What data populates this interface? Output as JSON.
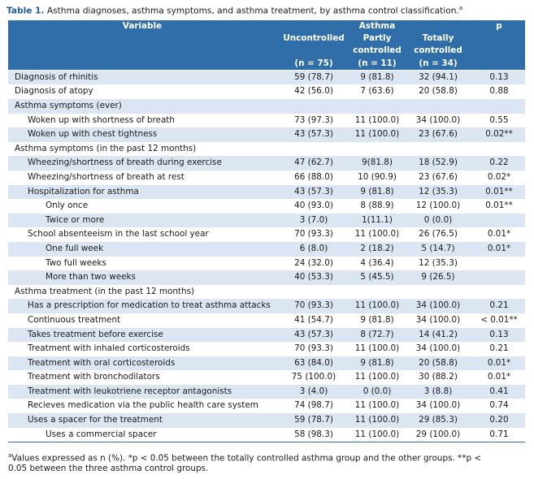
{
  "caption": {
    "label": "Table 1.",
    "text": "Asthma diagnoses, asthma symptoms, and asthma treatment, by asthma control classification.",
    "marker": "a"
  },
  "header": {
    "variable": "Variable",
    "asthma": "Asthma",
    "uncontrolled": "Uncontrolled",
    "partly1": "Partly",
    "partly2": "controlled",
    "totally1": "Totally",
    "totally2": "controlled",
    "p": "p",
    "n_uncontrolled": "(n = 75)",
    "n_partly": "(n = 11)",
    "n_totally": "(n = 34)"
  },
  "rows": [
    {
      "label": "Diagnosis of rhinitis",
      "indent": 0,
      "u": "59 (78.7)",
      "pc": "9 (81.8)",
      "tc": "32 (94.1)",
      "p": "0.13"
    },
    {
      "label": "Diagnosis of atopy",
      "indent": 0,
      "u": "42 (56.0)",
      "pc": "7 (63.6)",
      "tc": "20 (58.8)",
      "p": "0.88"
    },
    {
      "label": "Asthma symptoms (ever)",
      "indent": 0,
      "u": "",
      "pc": "",
      "tc": "",
      "p": ""
    },
    {
      "label": "Woken up with shortness of breath",
      "indent": 1,
      "u": "73 (97.3)",
      "pc": "11 (100.0)",
      "tc": "34 (100.0)",
      "p": "0.55"
    },
    {
      "label": "Woken up with chest tightness",
      "indent": 1,
      "u": "43 (57.3)",
      "pc": "11 (100.0)",
      "tc": "23 (67.6)",
      "p": "0.02**"
    },
    {
      "label": "Asthma symptoms (in the past 12 months)",
      "indent": 0,
      "u": "",
      "pc": "",
      "tc": "",
      "p": ""
    },
    {
      "label": "Wheezing/shortness of breath during exercise",
      "indent": 1,
      "u": "47 (62.7)",
      "pc": "9(81.8)",
      "tc": "18 (52.9)",
      "p": "0.22"
    },
    {
      "label": "Wheezing/shortness of breath at rest",
      "indent": 1,
      "u": "66 (88.0)",
      "pc": "10 (90.9)",
      "tc": "23 (67.6)",
      "p": "0.02*"
    },
    {
      "label": "Hospitalization for asthma",
      "indent": 1,
      "u": "43 (57.3)",
      "pc": "9 (81.8)",
      "tc": "12 (35.3)",
      "p": "0.01**"
    },
    {
      "label": "Only once",
      "indent": 2,
      "u": "40 (93.0)",
      "pc": "8 (88.9)",
      "tc": "12 (100.0)",
      "p": "0.01**"
    },
    {
      "label": "Twice or more",
      "indent": 2,
      "u": "3 (7.0)",
      "pc": "1(11.1)",
      "tc": "0 (0.0)",
      "p": ""
    },
    {
      "label": "School absenteeism in the last school year",
      "indent": 1,
      "u": "70 (93.3)",
      "pc": "11 (100.0)",
      "tc": "26 (76.5)",
      "p": "0.01*"
    },
    {
      "label": "One full week",
      "indent": 2,
      "u": "6 (8.0)",
      "pc": "2 (18.2)",
      "tc": "5 (14.7)",
      "p": "0.01*"
    },
    {
      "label": "Two full weeks",
      "indent": 2,
      "u": "24 (32.0)",
      "pc": "4 (36.4)",
      "tc": "12 (35.3)",
      "p": ""
    },
    {
      "label": "More than two weeks",
      "indent": 2,
      "u": "40 (53.3)",
      "pc": "5 (45.5)",
      "tc": "9 (26.5)",
      "p": ""
    },
    {
      "label": "Asthma treatment (in the past 12 months)",
      "indent": 0,
      "u": "",
      "pc": "",
      "tc": "",
      "p": ""
    },
    {
      "label": "Has a prescription for medication to treat asthma attacks",
      "indent": 1,
      "u": "70 (93.3)",
      "pc": "11 (100.0)",
      "tc": "34 (100.0)",
      "p": "0.21"
    },
    {
      "label": "Continuous treatment",
      "indent": 1,
      "u": "41 (54.7)",
      "pc": "9 (81.8)",
      "tc": "34 (100.0)",
      "p": "< 0.01**"
    },
    {
      "label": "Takes treatment before exercise",
      "indent": 1,
      "u": "43 (57.3)",
      "pc": "8 (72.7)",
      "tc": "14 (41.2)",
      "p": "0.13"
    },
    {
      "label": "Treatment with inhaled corticosteroids",
      "indent": 1,
      "u": "70 (93.3)",
      "pc": "11 (100.0)",
      "tc": "34 (100.0)",
      "p": "0.21"
    },
    {
      "label": "Treatment with oral corticosteroids",
      "indent": 1,
      "u": "63 (84.0)",
      "pc": "9 (81.8)",
      "tc": "20 (58.8)",
      "p": "0.01*"
    },
    {
      "label": "Treatment with bronchodilators",
      "indent": 1,
      "u": "75 (100.0)",
      "pc": "11 (100.0)",
      "tc": "30 (88.2)",
      "p": "0.01*"
    },
    {
      "label": "Treatment with leukotriene receptor antagonists",
      "indent": 1,
      "u": "3 (4.0)",
      "pc": "0 (0.0)",
      "tc": "3 (8.8)",
      "p": "0.41"
    },
    {
      "label": "Recieves medication via the public health care system",
      "indent": 1,
      "u": "74 (98.7)",
      "pc": "11 (100.0)",
      "tc": "34 (100.0)",
      "p": "0.74"
    },
    {
      "label": "Uses a spacer for the treatment",
      "indent": 1,
      "u": "59 (78.7)",
      "pc": "11 (100.0)",
      "tc": "29 (85.3)",
      "p": "0.20"
    },
    {
      "label": "Uses a commercial spacer",
      "indent": 2,
      "u": "58 (98.3)",
      "pc": "11 (100.0)",
      "tc": "29 (100.0)",
      "p": "0.71"
    }
  ],
  "footnote": {
    "marker": "a",
    "line1": "Values expressed as n (%). *p < 0.05 between the totally controlled asthma group and the other groups.  **p <",
    "line2": "0.05 between the three asthma control groups."
  },
  "colors": {
    "header_bg": "#2f6ea8",
    "stripe": "#dce6f2",
    "caption_label": "#1d5c96"
  }
}
